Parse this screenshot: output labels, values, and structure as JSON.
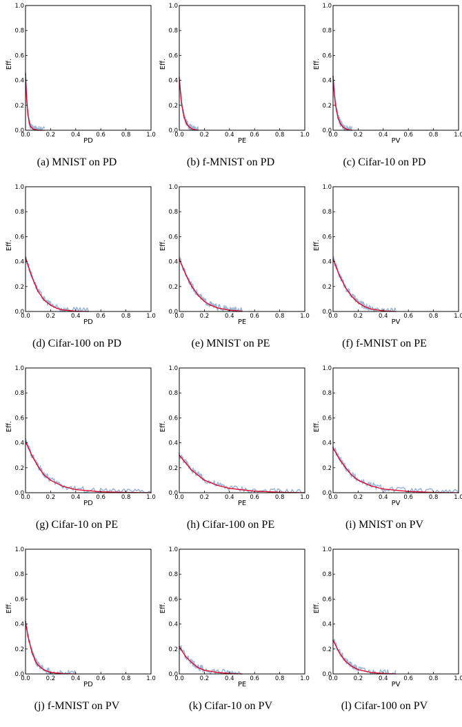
{
  "colors": {
    "curve": "#e0002a",
    "noise": "#9db7d3",
    "axis": "#000000"
  },
  "chart_data": [
    {
      "id": "a",
      "type": "line",
      "caption": "(a) MNIST on PD",
      "xlabel": "PD",
      "ylabel": "Eff.",
      "xlim": [
        0,
        1
      ],
      "ylim": [
        0,
        1
      ],
      "xticks": [
        "0.0",
        "0.2",
        "0.4",
        "0.6",
        "0.8",
        "1.0"
      ],
      "yticks": [
        "0.0",
        "0.2",
        "0.4",
        "0.6",
        "0.8",
        "1.0"
      ],
      "series": [
        {
          "x": [
            0.0,
            0.01,
            0.02,
            0.03,
            0.04,
            0.06,
            0.08,
            0.1,
            0.15
          ],
          "y": [
            0.45,
            0.24,
            0.12,
            0.06,
            0.03,
            0.01,
            0.005,
            0.0,
            0.0
          ]
        }
      ]
    },
    {
      "id": "b",
      "type": "line",
      "caption": "(b) f-MNIST on PD",
      "xlabel": "PE",
      "ylabel": "Eff.",
      "xlim": [
        0,
        1
      ],
      "ylim": [
        0,
        1
      ],
      "xticks": [
        "0.0",
        "0.2",
        "0.4",
        "0.6",
        "0.8",
        "1.0"
      ],
      "yticks": [
        "0.0",
        "0.2",
        "0.4",
        "0.6",
        "0.8",
        "1.0"
      ],
      "series": [
        {
          "x": [
            0.0,
            0.01,
            0.02,
            0.04,
            0.06,
            0.08,
            0.1,
            0.12,
            0.15
          ],
          "y": [
            0.42,
            0.3,
            0.2,
            0.1,
            0.05,
            0.025,
            0.012,
            0.005,
            0.0
          ]
        }
      ]
    },
    {
      "id": "c",
      "type": "line",
      "caption": "(c) Cifar-10 on PD",
      "xlabel": "PV",
      "ylabel": "Eff.",
      "xlim": [
        0,
        1
      ],
      "ylim": [
        0,
        1
      ],
      "xticks": [
        "0.0",
        "0.2",
        "0.4",
        "0.6",
        "0.8",
        "1.0"
      ],
      "yticks": [
        "0.0",
        "0.2",
        "0.4",
        "0.6",
        "0.8",
        "1.0"
      ],
      "series": [
        {
          "x": [
            0.0,
            0.01,
            0.02,
            0.04,
            0.06,
            0.08,
            0.1,
            0.12,
            0.15
          ],
          "y": [
            0.43,
            0.29,
            0.2,
            0.1,
            0.05,
            0.025,
            0.012,
            0.005,
            0.0
          ]
        }
      ]
    },
    {
      "id": "d",
      "type": "line",
      "caption": "(d) Cifar-100 on PD",
      "xlabel": "PD",
      "ylabel": "Eff.",
      "xlim": [
        0,
        1
      ],
      "ylim": [
        0,
        1
      ],
      "xticks": [
        "0.0",
        "0.2",
        "0.4",
        "0.6",
        "0.8",
        "1.0"
      ],
      "yticks": [
        "0.0",
        "0.2",
        "0.4",
        "0.6",
        "0.8",
        "1.0"
      ],
      "series": [
        {
          "x": [
            0.0,
            0.05,
            0.1,
            0.15,
            0.2,
            0.25,
            0.3,
            0.4,
            0.5
          ],
          "y": [
            0.43,
            0.28,
            0.16,
            0.09,
            0.05,
            0.025,
            0.012,
            0.003,
            0.0
          ]
        }
      ]
    },
    {
      "id": "e",
      "type": "line",
      "caption": "(e) MNIST on PE",
      "xlabel": "PE",
      "ylabel": "Eff.",
      "xlim": [
        0,
        1
      ],
      "ylim": [
        0,
        1
      ],
      "xticks": [
        "0.0",
        "0.2",
        "0.4",
        "0.6",
        "0.8",
        "1.0"
      ],
      "yticks": [
        "0.0",
        "0.2",
        "0.4",
        "0.6",
        "0.8",
        "1.0"
      ],
      "series": [
        {
          "x": [
            0.0,
            0.05,
            0.1,
            0.15,
            0.2,
            0.25,
            0.3,
            0.4,
            0.5
          ],
          "y": [
            0.42,
            0.3,
            0.2,
            0.13,
            0.08,
            0.05,
            0.03,
            0.01,
            0.003
          ]
        }
      ]
    },
    {
      "id": "f",
      "type": "line",
      "caption": "(f) f-MNIST on PE",
      "xlabel": "PV",
      "ylabel": "Eff.",
      "xlim": [
        0,
        1
      ],
      "ylim": [
        0,
        1
      ],
      "xticks": [
        "0.0",
        "0.2",
        "0.4",
        "0.6",
        "0.8",
        "1.0"
      ],
      "yticks": [
        "0.0",
        "0.2",
        "0.4",
        "0.6",
        "0.8",
        "1.0"
      ],
      "series": [
        {
          "x": [
            0.0,
            0.05,
            0.1,
            0.15,
            0.2,
            0.25,
            0.3,
            0.4,
            0.5
          ],
          "y": [
            0.42,
            0.29,
            0.19,
            0.12,
            0.07,
            0.04,
            0.02,
            0.005,
            0.0
          ]
        }
      ]
    },
    {
      "id": "g",
      "type": "line",
      "caption": "(g) Cifar-10 on PE",
      "xlabel": "PD",
      "ylabel": "Eff.",
      "xlim": [
        0,
        1
      ],
      "ylim": [
        0,
        1
      ],
      "xticks": [
        "0.0",
        "0.2",
        "0.4",
        "0.6",
        "0.8",
        "1.0"
      ],
      "yticks": [
        "0.0",
        "0.2",
        "0.4",
        "0.6",
        "0.8",
        "1.0"
      ],
      "series": [
        {
          "x": [
            0.0,
            0.05,
            0.1,
            0.15,
            0.2,
            0.3,
            0.4,
            0.6,
            0.8,
            1.0
          ],
          "y": [
            0.41,
            0.3,
            0.21,
            0.14,
            0.1,
            0.05,
            0.025,
            0.008,
            0.003,
            0.0
          ]
        }
      ]
    },
    {
      "id": "h",
      "type": "line",
      "caption": "(h) Cifar-100 on PE",
      "xlabel": "PE",
      "ylabel": "Eff.",
      "xlim": [
        0,
        1
      ],
      "ylim": [
        0,
        1
      ],
      "xticks": [
        "0.0",
        "0.2",
        "0.4",
        "0.6",
        "0.8",
        "1.0"
      ],
      "yticks": [
        "0.0",
        "0.2",
        "0.4",
        "0.6",
        "0.8",
        "1.0"
      ],
      "series": [
        {
          "x": [
            0.0,
            0.05,
            0.1,
            0.15,
            0.2,
            0.3,
            0.4,
            0.6,
            0.8,
            1.0
          ],
          "y": [
            0.3,
            0.24,
            0.18,
            0.14,
            0.1,
            0.06,
            0.035,
            0.012,
            0.004,
            0.0
          ]
        }
      ]
    },
    {
      "id": "i",
      "type": "line",
      "caption": "(i) MNIST on PV",
      "xlabel": "PV",
      "ylabel": "Eff.",
      "xlim": [
        0,
        1
      ],
      "ylim": [
        0,
        1
      ],
      "xticks": [
        "0.0",
        "0.2",
        "0.4",
        "0.6",
        "0.8",
        "1.0"
      ],
      "yticks": [
        "0.0",
        "0.2",
        "0.4",
        "0.6",
        "0.8",
        "1.0"
      ],
      "series": [
        {
          "x": [
            0.0,
            0.05,
            0.1,
            0.15,
            0.2,
            0.3,
            0.4,
            0.6,
            0.8,
            1.0
          ],
          "y": [
            0.36,
            0.27,
            0.2,
            0.14,
            0.1,
            0.055,
            0.03,
            0.01,
            0.003,
            0.0
          ]
        }
      ]
    },
    {
      "id": "j",
      "type": "line",
      "caption": "(j) f-MNIST on PV",
      "xlabel": "PD",
      "ylabel": "Eff.",
      "xlim": [
        0,
        1
      ],
      "ylim": [
        0,
        1
      ],
      "xticks": [
        "0.0",
        "0.2",
        "0.4",
        "0.6",
        "0.8",
        "1.0"
      ],
      "yticks": [
        "0.0",
        "0.2",
        "0.4",
        "0.6",
        "0.8",
        "1.0"
      ],
      "series": [
        {
          "x": [
            0.0,
            0.02,
            0.05,
            0.08,
            0.1,
            0.15,
            0.2,
            0.3,
            0.4
          ],
          "y": [
            0.42,
            0.3,
            0.18,
            0.1,
            0.07,
            0.03,
            0.012,
            0.003,
            0.0
          ]
        }
      ]
    },
    {
      "id": "k",
      "type": "line",
      "caption": "(k) Cifar-10 on PV",
      "xlabel": "PE",
      "ylabel": "Eff.",
      "xlim": [
        0,
        1
      ],
      "ylim": [
        0,
        1
      ],
      "xticks": [
        "0.0",
        "0.2",
        "0.4",
        "0.6",
        "0.8",
        "1.0"
      ],
      "yticks": [
        "0.0",
        "0.2",
        "0.4",
        "0.6",
        "0.8",
        "1.0"
      ],
      "series": [
        {
          "x": [
            0.0,
            0.05,
            0.1,
            0.15,
            0.2,
            0.3,
            0.4,
            0.5
          ],
          "y": [
            0.22,
            0.14,
            0.09,
            0.05,
            0.03,
            0.012,
            0.004,
            0.0
          ]
        }
      ]
    },
    {
      "id": "l",
      "type": "line",
      "caption": "(l) Cifar-100 on PV",
      "xlabel": "PV",
      "ylabel": "Eff.",
      "xlim": [
        0,
        1
      ],
      "ylim": [
        0,
        1
      ],
      "xticks": [
        "0.0",
        "0.2",
        "0.4",
        "0.6",
        "0.8",
        "1.0"
      ],
      "yticks": [
        "0.0",
        "0.2",
        "0.4",
        "0.6",
        "0.8",
        "1.0"
      ],
      "series": [
        {
          "x": [
            0.0,
            0.05,
            0.1,
            0.15,
            0.2,
            0.3,
            0.4,
            0.5
          ],
          "y": [
            0.27,
            0.17,
            0.1,
            0.06,
            0.035,
            0.012,
            0.004,
            0.0
          ]
        }
      ]
    }
  ]
}
